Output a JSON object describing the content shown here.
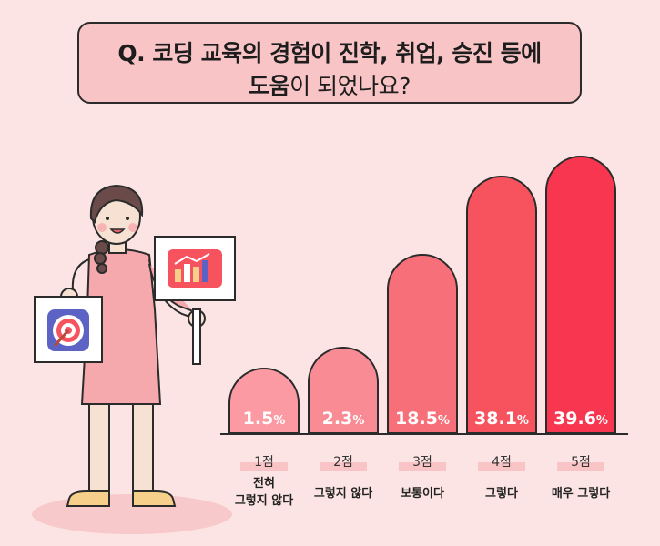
{
  "title": {
    "line1": "Q. 코딩 교육의 경험이 진학, 취업, 승진 등에",
    "line2_bold": "도움",
    "line2_rest": "이 되었나요?"
  },
  "colors": {
    "background": "#fde4e4",
    "title_box": "#f9c4c6",
    "bars": [
      "#fb9aa3",
      "#f98b95",
      "#f77079",
      "#f7535f",
      "#f93650"
    ],
    "label_tab": "#f9c4c6"
  },
  "icons": [
    "target-icon",
    "bar-chart-icon"
  ],
  "chart_data": {
    "type": "bar",
    "title": "",
    "categories": [
      "1점",
      "2점",
      "3점",
      "4점",
      "5점"
    ],
    "descriptions": [
      [
        "전혀",
        "그렇지 않다"
      ],
      [
        "그렇지 않다"
      ],
      [
        "보통이다"
      ],
      [
        "그렇다"
      ],
      [
        "매우 그렇다"
      ]
    ],
    "values": [
      1.5,
      2.3,
      18.5,
      38.1,
      39.6
    ],
    "unit": "%",
    "xlabel": "",
    "ylabel": "",
    "grid": false,
    "legend": "none"
  }
}
